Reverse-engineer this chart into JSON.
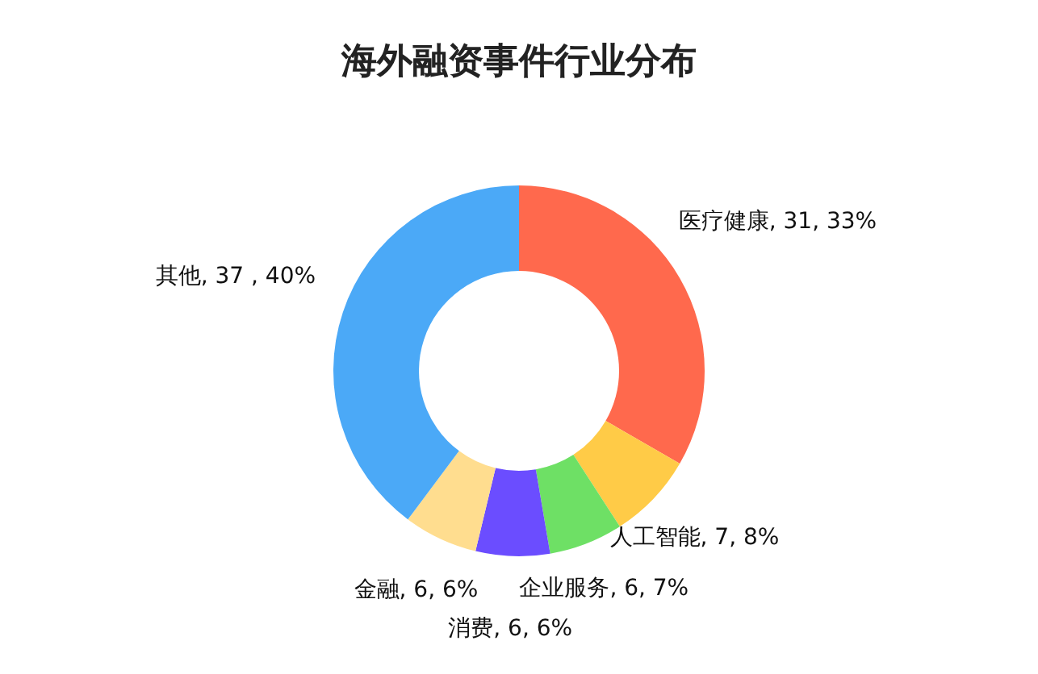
{
  "chart_data": {
    "type": "donut",
    "title": "海外融资事件行业分布",
    "categories": [
      "医疗健康",
      "人工智能",
      "企业服务",
      "消费",
      "金融",
      "其他"
    ],
    "values": [
      31,
      7,
      6,
      6,
      6,
      37
    ],
    "value_labels": [
      "31, 33%",
      "7, 8%",
      "6, 7%",
      "6, 6%",
      "6, 6%",
      " 37 , 40%"
    ],
    "colors": [
      "#ff694d",
      "#ffcb47",
      "#6ee065",
      "#6b4dff",
      "#ffdd8f",
      "#4ba9f7"
    ],
    "legend": false
  }
}
